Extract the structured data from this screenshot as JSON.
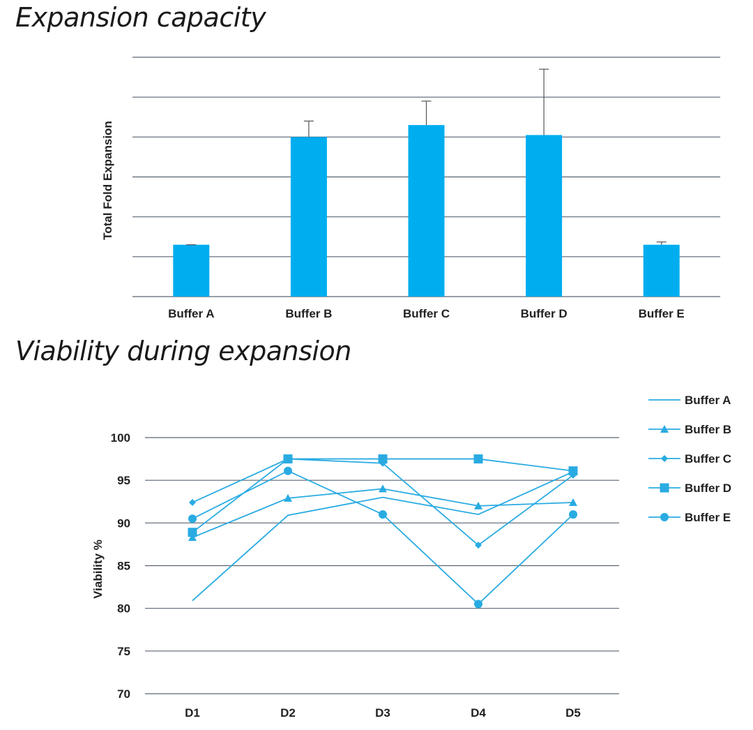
{
  "chart_data": [
    {
      "type": "bar",
      "title": "Expansion capacity",
      "ylabel": "Total Fold Expansion",
      "categories": [
        "Buffer A",
        "Buffer B",
        "Buffer C",
        "Buffer D",
        "Buffer E"
      ],
      "values": [
        1.3,
        4.0,
        4.3,
        4.05,
        1.3
      ],
      "error": [
        0.0,
        0.4,
        0.6,
        1.65,
        0.07
      ],
      "ylim": [
        0,
        6
      ],
      "grid": true,
      "color": "#00adef"
    },
    {
      "type": "line",
      "title": "Viability during expansion",
      "ylabel": "Viability %",
      "x": [
        "D1",
        "D2",
        "D3",
        "D4",
        "D5"
      ],
      "ylim": [
        70,
        100
      ],
      "yticks": [
        70,
        75,
        80,
        85,
        90,
        95,
        100
      ],
      "grid": true,
      "legend_position": "top-right",
      "color": "#29abe2",
      "series": [
        {
          "name": "Buffer A",
          "marker": "none",
          "values": [
            80.9,
            90.9,
            93.0,
            91.0,
            96.0
          ]
        },
        {
          "name": "Buffer B",
          "marker": "triangle",
          "values": [
            88.3,
            92.9,
            94.0,
            92.0,
            92.4
          ]
        },
        {
          "name": "Buffer C",
          "marker": "diamond",
          "values": [
            92.4,
            97.5,
            97.0,
            87.4,
            95.6
          ]
        },
        {
          "name": "Buffer D",
          "marker": "square",
          "values": [
            88.9,
            97.5,
            97.5,
            97.5,
            96.1
          ]
        },
        {
          "name": "Buffer E",
          "marker": "circle",
          "values": [
            90.5,
            96.1,
            91.0,
            80.5,
            91.0
          ]
        }
      ]
    }
  ]
}
